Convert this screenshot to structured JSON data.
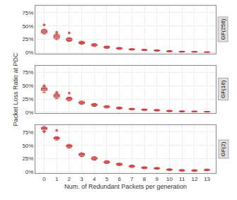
{
  "chart_data": [
    {
      "type": "box",
      "title": "GF(256)",
      "color": "#C84040",
      "grid": true,
      "tick_labels": "y",
      "x": [
        0,
        1,
        2,
        3,
        4,
        5,
        6,
        7,
        8,
        9,
        10,
        11,
        12,
        13
      ],
      "median": [
        0.4,
        0.3,
        0.245,
        0.185,
        0.14,
        0.1,
        0.08,
        0.06,
        0.05,
        0.04,
        0.025,
        0.018,
        0.015,
        0.01
      ],
      "q1": [
        0.37,
        0.27,
        0.225,
        0.17,
        0.13,
        0.09,
        0.07,
        0.055,
        0.045,
        0.033,
        0.02,
        0.013,
        0.011,
        0.007
      ],
      "q3": [
        0.42,
        0.33,
        0.265,
        0.2,
        0.155,
        0.115,
        0.09,
        0.068,
        0.057,
        0.047,
        0.032,
        0.023,
        0.019,
        0.013
      ],
      "whisker_low": [
        0.35,
        0.245,
        0.21,
        0.155,
        0.115,
        0.08,
        0.06,
        0.047,
        0.038,
        0.025,
        0.013,
        0.007,
        0.006,
        0.003
      ],
      "whisker_high": [
        0.44,
        0.35,
        0.28,
        0.215,
        0.168,
        0.123,
        0.097,
        0.074,
        0.062,
        0.052,
        0.037,
        0.027,
        0.023,
        0.017
      ],
      "fliers_x": [
        0,
        1,
        2
      ],
      "fliers_y": [
        0.52,
        0.38,
        0.37
      ],
      "xlim": [
        -0.7,
        13.7
      ],
      "xticks": [
        0,
        1,
        2,
        3,
        4,
        5,
        6,
        7,
        8,
        9,
        10,
        11,
        12,
        13
      ],
      "ylim": [
        -0.02,
        0.88
      ],
      "yticks": [
        {
          "value": 0.0,
          "label": "0%"
        },
        {
          "value": 0.25,
          "label": "25%"
        },
        {
          "value": 0.5,
          "label": "50%"
        },
        {
          "value": 0.75,
          "label": "75%"
        }
      ]
    },
    {
      "type": "box",
      "title": "GF(16)",
      "color": "#C84040",
      "grid": true,
      "tick_labels": "y",
      "ylabel": "Packet Loss Ratio at PDC",
      "x": [
        0,
        1,
        2,
        3,
        4,
        5,
        6,
        7,
        8,
        9,
        10,
        11,
        12,
        13
      ],
      "median": [
        0.44,
        0.31,
        0.255,
        0.185,
        0.14,
        0.105,
        0.082,
        0.062,
        0.05,
        0.04,
        0.026,
        0.018,
        0.016,
        0.011
      ],
      "q1": [
        0.41,
        0.285,
        0.235,
        0.168,
        0.128,
        0.093,
        0.071,
        0.055,
        0.043,
        0.033,
        0.02,
        0.013,
        0.012,
        0.008
      ],
      "q3": [
        0.46,
        0.335,
        0.27,
        0.198,
        0.154,
        0.117,
        0.091,
        0.07,
        0.058,
        0.048,
        0.033,
        0.023,
        0.02,
        0.014
      ],
      "whisker_low": [
        0.37,
        0.255,
        0.215,
        0.152,
        0.112,
        0.082,
        0.061,
        0.047,
        0.036,
        0.025,
        0.012,
        0.007,
        0.007,
        0.004
      ],
      "whisker_high": [
        0.48,
        0.355,
        0.285,
        0.212,
        0.167,
        0.127,
        0.1,
        0.076,
        0.063,
        0.054,
        0.039,
        0.028,
        0.025,
        0.018
      ],
      "fliers_x": [
        0,
        1,
        2
      ],
      "fliers_y": [
        0.5,
        0.375,
        0.36
      ],
      "xlim": [
        -0.7,
        13.7
      ],
      "xticks": [
        0,
        1,
        2,
        3,
        4,
        5,
        6,
        7,
        8,
        9,
        10,
        11,
        12,
        13
      ],
      "ylim": [
        -0.02,
        0.88
      ],
      "yticks": [
        {
          "value": 0.0,
          "label": "0%"
        },
        {
          "value": 0.25,
          "label": "25%"
        },
        {
          "value": 0.5,
          "label": "50%"
        },
        {
          "value": 0.75,
          "label": "75%"
        }
      ]
    },
    {
      "type": "box",
      "title": "GF(2)",
      "color": "#C84040",
      "grid": true,
      "xlabel": "Num. of Redundant Packets per generation",
      "x": [
        0,
        1,
        2,
        3,
        4,
        5,
        6,
        7,
        8,
        9,
        10,
        11,
        12,
        13
      ],
      "median": [
        0.82,
        0.635,
        0.49,
        0.33,
        0.26,
        0.19,
        0.148,
        0.108,
        0.08,
        0.07,
        0.045,
        0.03,
        0.028,
        0.04
      ],
      "q1": [
        0.8,
        0.62,
        0.47,
        0.31,
        0.242,
        0.175,
        0.135,
        0.098,
        0.072,
        0.062,
        0.038,
        0.024,
        0.022,
        0.033
      ],
      "q3": [
        0.835,
        0.65,
        0.505,
        0.345,
        0.273,
        0.202,
        0.158,
        0.118,
        0.09,
        0.078,
        0.053,
        0.038,
        0.036,
        0.048
      ],
      "whisker_low": [
        0.77,
        0.6,
        0.45,
        0.29,
        0.225,
        0.16,
        0.122,
        0.086,
        0.062,
        0.053,
        0.03,
        0.017,
        0.015,
        0.026
      ],
      "whisker_high": [
        0.855,
        0.665,
        0.52,
        0.362,
        0.288,
        0.215,
        0.168,
        0.13,
        0.1,
        0.087,
        0.062,
        0.048,
        0.045,
        0.057
      ],
      "fliers_x": [
        0,
        1
      ],
      "fliers_y": [
        0.755,
        0.78
      ],
      "xlim": [
        -0.7,
        13.7
      ],
      "xticks": [
        0,
        1,
        2,
        3,
        4,
        5,
        6,
        7,
        8,
        9,
        10,
        11,
        12,
        13
      ],
      "ylim": [
        -0.02,
        0.88
      ],
      "yticks": [
        {
          "value": 0.0,
          "label": "0%"
        },
        {
          "value": 0.25,
          "label": "25%"
        },
        {
          "value": 0.5,
          "label": "50%"
        },
        {
          "value": 0.75,
          "label": "75%"
        }
      ]
    }
  ]
}
